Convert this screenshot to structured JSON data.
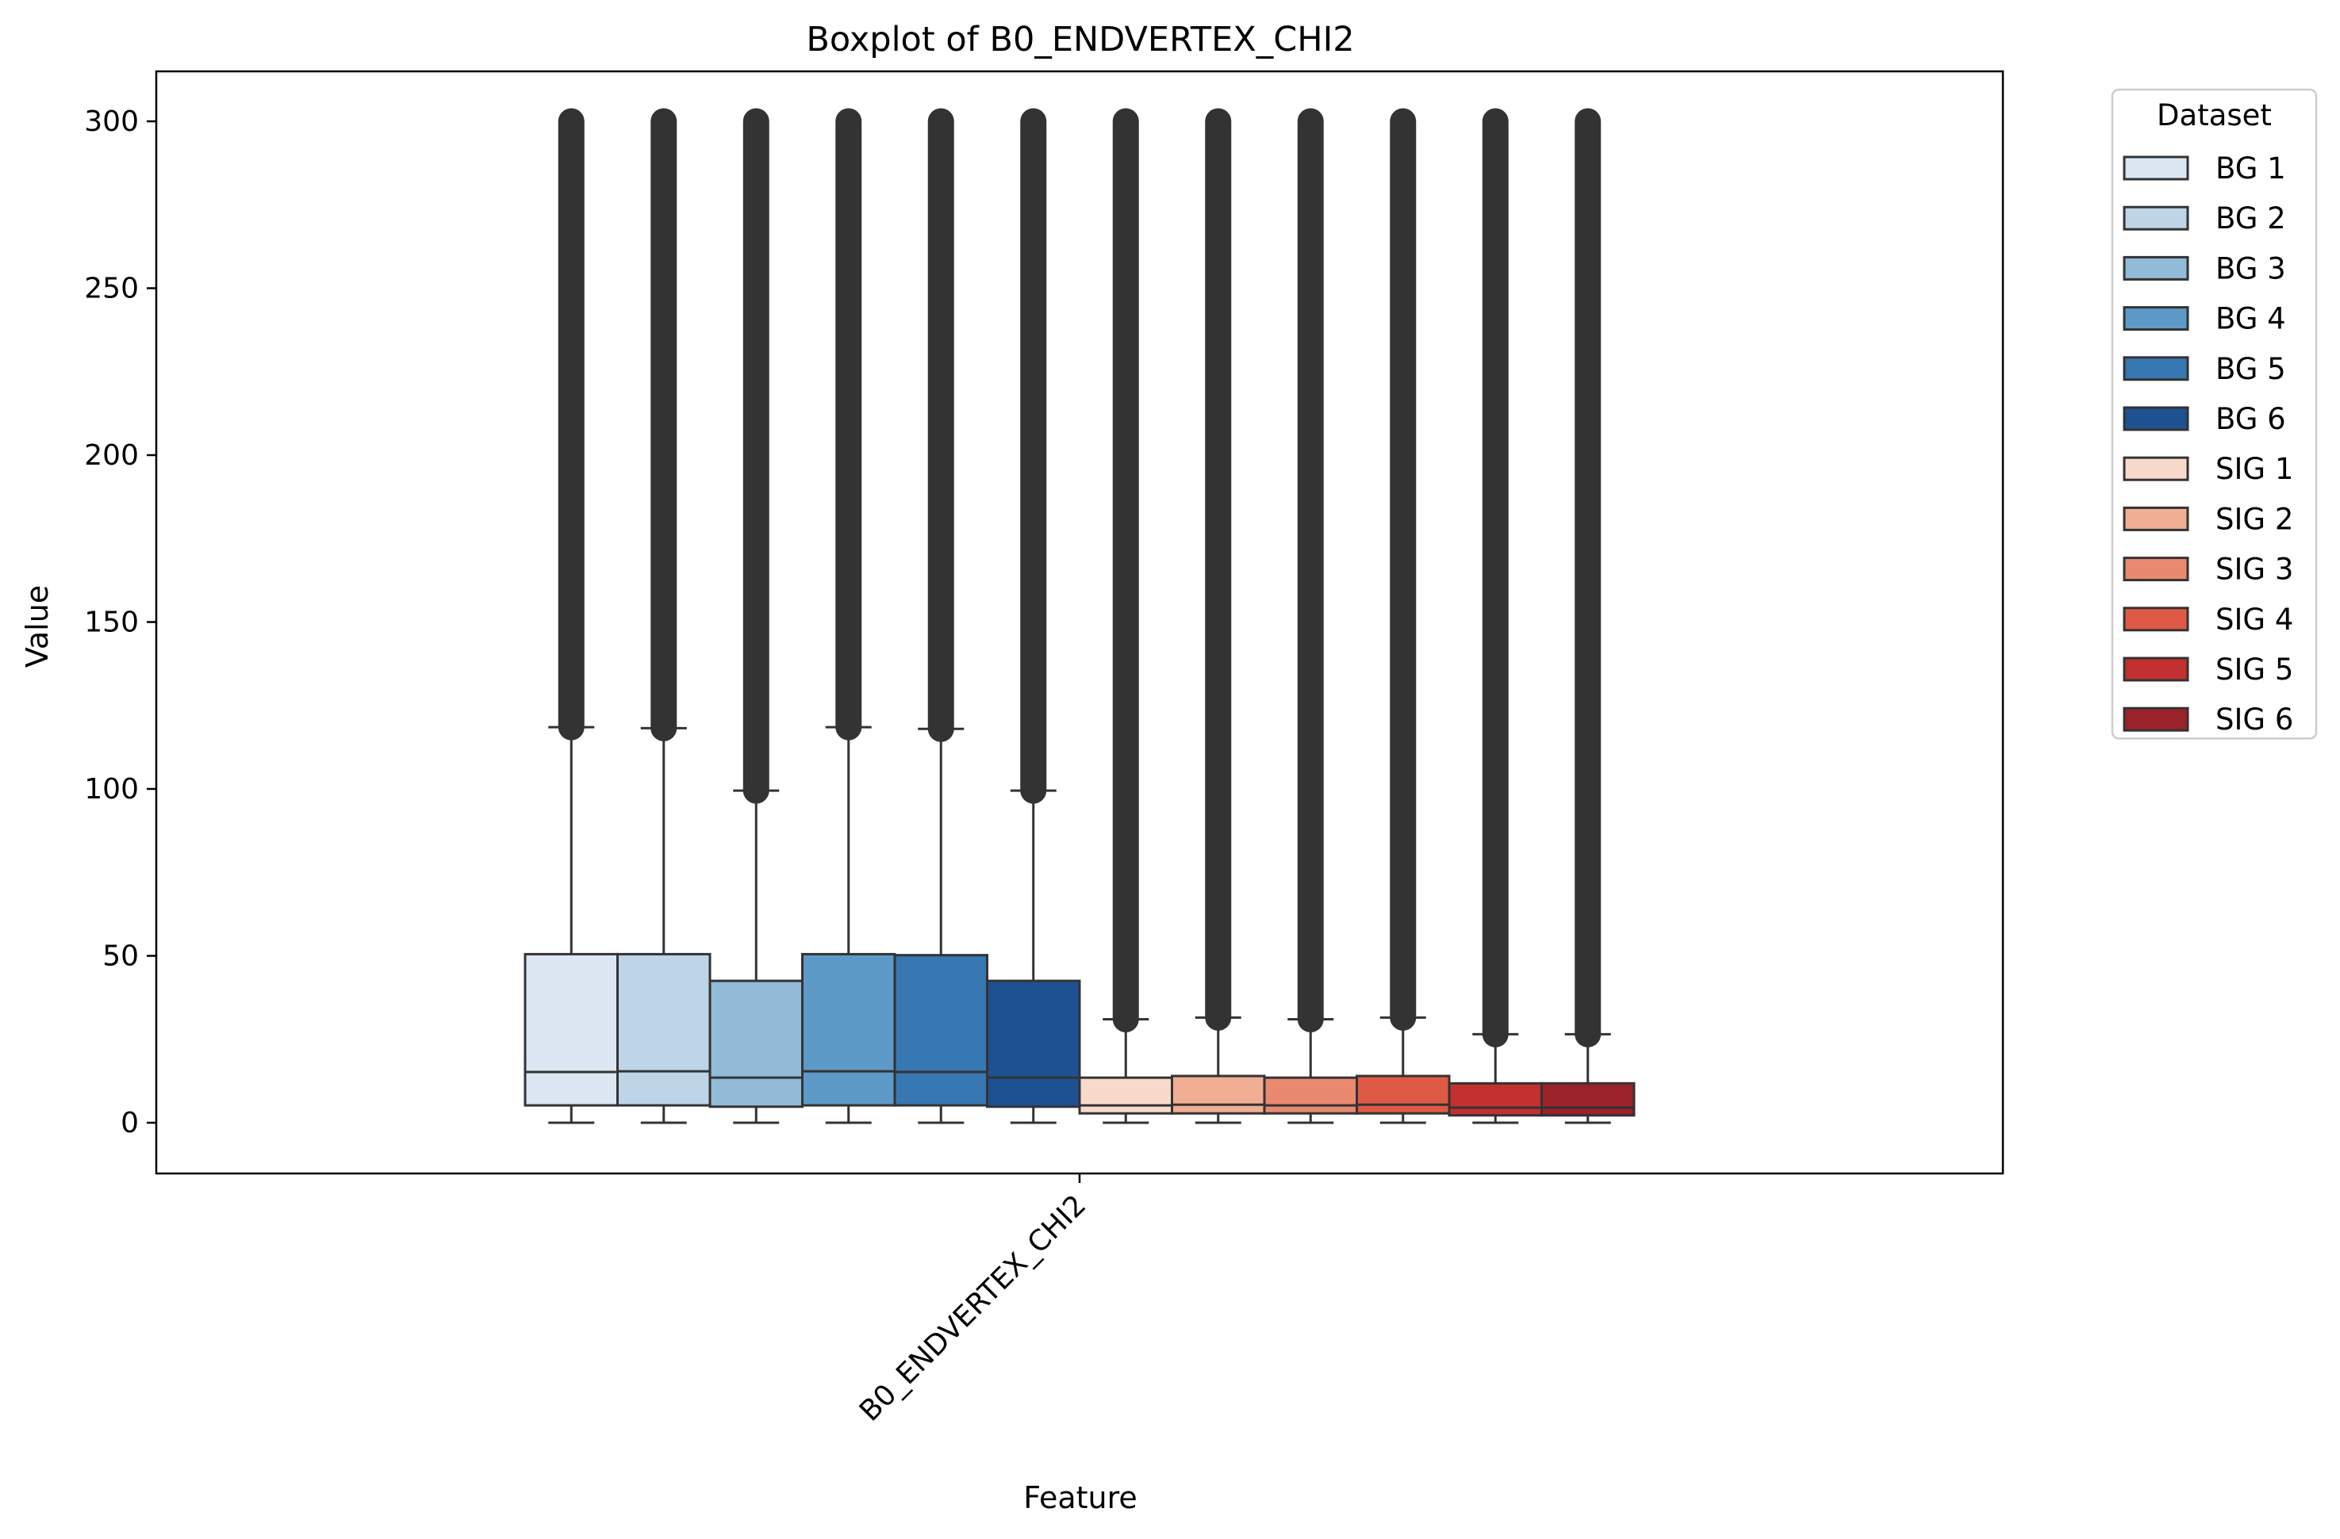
{
  "chart_data": {
    "type": "boxplot",
    "title": "Boxplot of B0_ENDVERTEX_CHI2",
    "xlabel": "Feature",
    "ylabel": "Value",
    "ylim": [
      -15,
      315
    ],
    "yticks": [
      0,
      50,
      100,
      150,
      200,
      250,
      300
    ],
    "categories": [
      "B0_ENDVERTEX_CHI2"
    ],
    "grid": false,
    "legend": {
      "title": "Dataset",
      "placement": "outside-top-right"
    },
    "series": [
      {
        "name": "BG 1",
        "color": "#dce7f3",
        "q1": 5.2,
        "median": 15.2,
        "q3": 50.5,
        "whisker_low": 0,
        "whisker_high": 118.5,
        "outliers_from": 118.5,
        "outliers_to": 300
      },
      {
        "name": "BG 2",
        "color": "#bed4e7",
        "q1": 5.2,
        "median": 15.4,
        "q3": 50.5,
        "whisker_low": 0,
        "whisker_high": 118.2,
        "outliers_from": 118.2,
        "outliers_to": 300
      },
      {
        "name": "BG 3",
        "color": "#92bbd7",
        "q1": 4.8,
        "median": 13.5,
        "q3": 42.5,
        "whisker_low": 0,
        "whisker_high": 99.5,
        "outliers_from": 99.5,
        "outliers_to": 300
      },
      {
        "name": "BG 4",
        "color": "#5d9ac7",
        "q1": 5.2,
        "median": 15.4,
        "q3": 50.5,
        "whisker_low": 0,
        "whisker_high": 118.5,
        "outliers_from": 118.5,
        "outliers_to": 300
      },
      {
        "name": "BG 5",
        "color": "#3777b2",
        "q1": 5.2,
        "median": 15.2,
        "q3": 50.2,
        "whisker_low": 0,
        "whisker_high": 118.0,
        "outliers_from": 118.0,
        "outliers_to": 300
      },
      {
        "name": "BG 6",
        "color": "#1e5192",
        "q1": 4.8,
        "median": 13.5,
        "q3": 42.5,
        "whisker_low": 0,
        "whisker_high": 99.5,
        "outliers_from": 99.5,
        "outliers_to": 300
      },
      {
        "name": "SIG 1",
        "color": "#f8dacd",
        "q1": 2.8,
        "median": 5.2,
        "q3": 13.5,
        "whisker_low": 0,
        "whisker_high": 31.0,
        "outliers_from": 31.0,
        "outliers_to": 300
      },
      {
        "name": "SIG 2",
        "color": "#f0ae94",
        "q1": 2.8,
        "median": 5.4,
        "q3": 14.0,
        "whisker_low": 0,
        "whisker_high": 31.5,
        "outliers_from": 31.5,
        "outliers_to": 300
      },
      {
        "name": "SIG 3",
        "color": "#e98970",
        "q1": 2.8,
        "median": 5.2,
        "q3": 13.5,
        "whisker_low": 0,
        "whisker_high": 31.0,
        "outliers_from": 31.0,
        "outliers_to": 300
      },
      {
        "name": "SIG 4",
        "color": "#df5a45",
        "q1": 2.8,
        "median": 5.4,
        "q3": 14.0,
        "whisker_low": 0,
        "whisker_high": 31.5,
        "outliers_from": 31.5,
        "outliers_to": 300
      },
      {
        "name": "SIG 5",
        "color": "#c2302f",
        "q1": 2.2,
        "median": 4.5,
        "q3": 11.8,
        "whisker_low": 0,
        "whisker_high": 26.5,
        "outliers_from": 26.5,
        "outliers_to": 300
      },
      {
        "name": "SIG 6",
        "color": "#9b222b",
        "q1": 2.2,
        "median": 4.5,
        "q3": 11.8,
        "whisker_low": 0,
        "whisker_high": 26.5,
        "outliers_from": 26.5,
        "outliers_to": 300
      }
    ]
  }
}
